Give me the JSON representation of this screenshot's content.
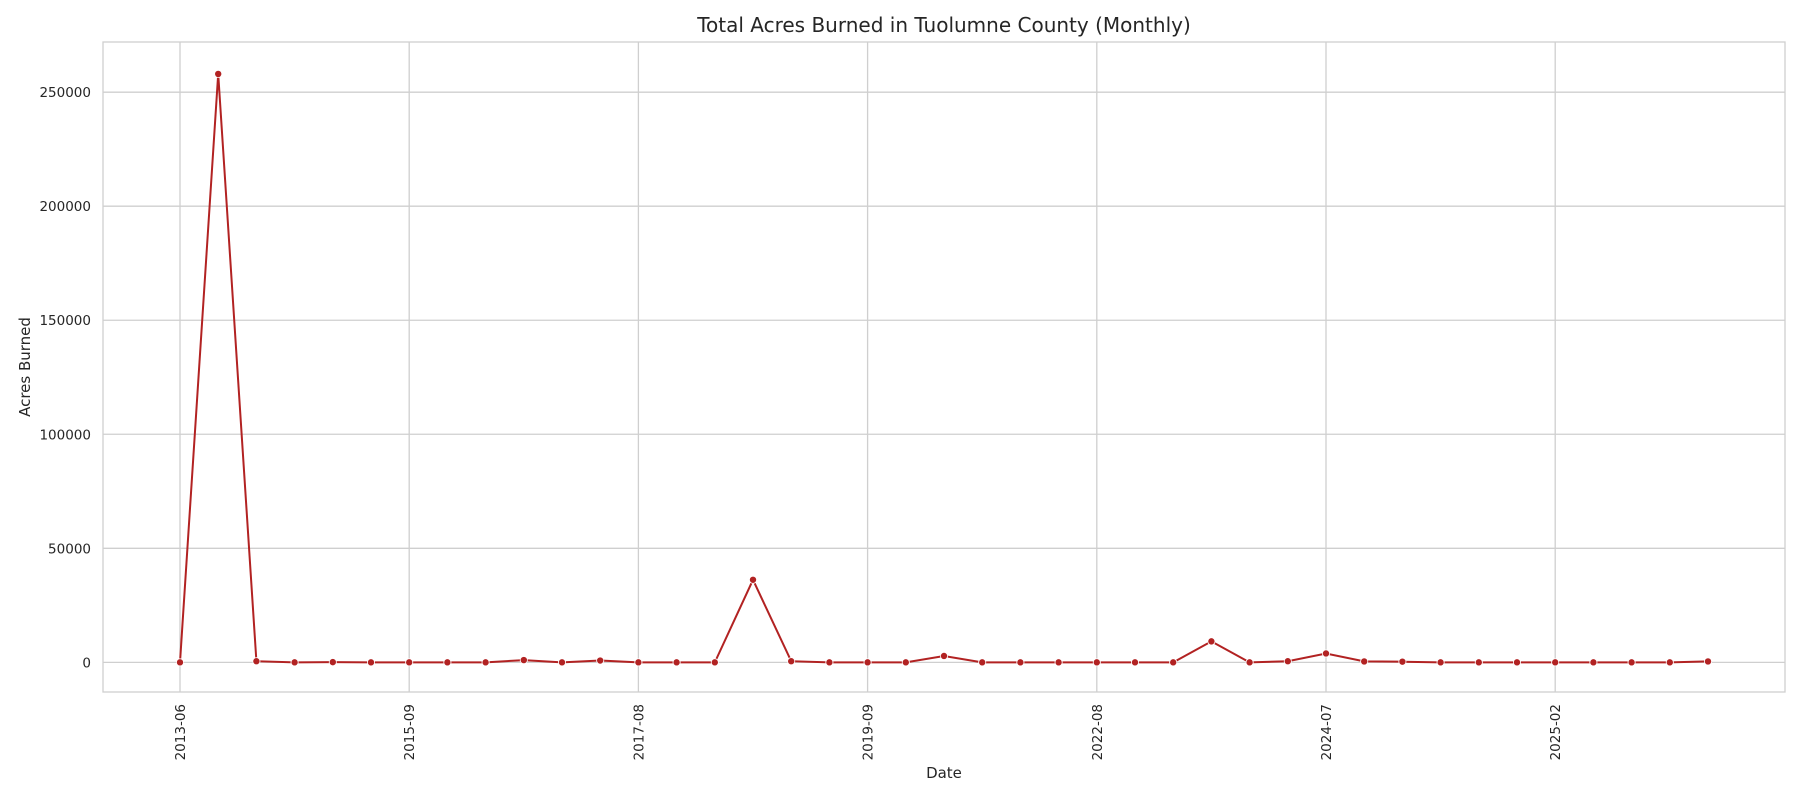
{
  "chart_data": {
    "type": "line",
    "title": "Total Acres Burned in Tuolumne County (Monthly)",
    "xlabel": "Date",
    "ylabel": "Acres Burned",
    "ylim": [
      -13000,
      272000
    ],
    "yticks": [
      0,
      50000,
      100000,
      150000,
      200000,
      250000
    ],
    "ytick_labels": [
      "0",
      "50000",
      "100000",
      "150000",
      "200000",
      "250000"
    ],
    "xtick_labels": [
      {
        "label": "2013-06",
        "index": 0
      },
      {
        "label": "2015-09",
        "index": 6
      },
      {
        "label": "2017-08",
        "index": 12
      },
      {
        "label": "2019-09",
        "index": 18
      },
      {
        "label": "2022-08",
        "index": 24
      },
      {
        "label": "2024-07",
        "index": 30
      },
      {
        "label": "2025-02",
        "index": 36
      }
    ],
    "grid": true,
    "color": "#b22222",
    "series": [
      {
        "values": [
          0,
          258000,
          500,
          0,
          100,
          0,
          0,
          0,
          0,
          1000,
          0,
          800,
          0,
          0,
          0,
          36200,
          500,
          0,
          0,
          0,
          2800,
          0,
          0,
          0,
          0,
          0,
          0,
          9200,
          0,
          500,
          3900,
          400,
          300,
          0,
          0,
          0,
          0,
          0,
          0,
          0,
          400
        ]
      }
    ]
  }
}
